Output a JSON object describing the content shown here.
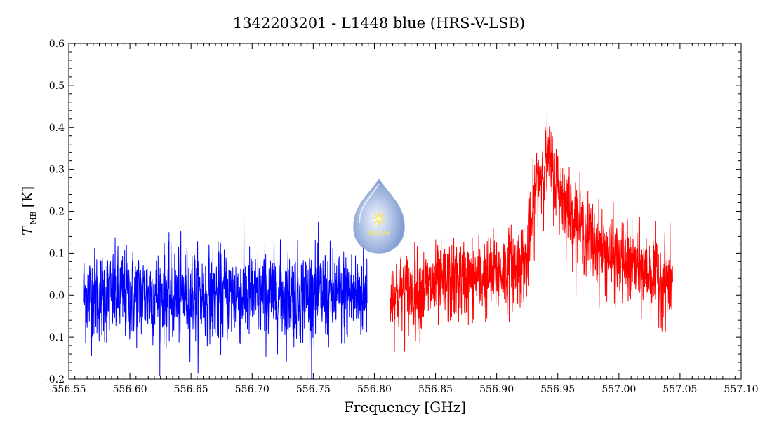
{
  "chart_data": {
    "type": "line",
    "title": "1342203201 - L1448 blue (HRS-V-LSB)",
    "xlabel": "Frequency [GHz]",
    "ylabel_main": "T",
    "ylabel_sub": "MB",
    "ylabel_unit": "[K]",
    "xlim": [
      556.55,
      557.1
    ],
    "ylim": [
      -0.2,
      0.6
    ],
    "x_ticks": [
      "556.55",
      "556.60",
      "556.65",
      "556.70",
      "556.75",
      "556.80",
      "556.85",
      "556.90",
      "556.95",
      "557.00",
      "557.05",
      "557.10"
    ],
    "y_ticks": [
      "-0.2",
      "-0.1",
      "0.0",
      "0.1",
      "0.2",
      "0.3",
      "0.4",
      "0.5",
      "0.6"
    ],
    "grid": false,
    "series": [
      {
        "color": "#0000ff",
        "x_range": [
          556.562,
          556.794
        ],
        "profile": [
          [
            556.562,
            0.0
          ],
          [
            556.794,
            0.0
          ]
        ],
        "noise_rms": 0.055,
        "samples": 1300
      },
      {
        "color": "#ff0000",
        "x_range": [
          556.813,
          557.044
        ],
        "profile": [
          [
            556.813,
            0.0
          ],
          [
            556.85,
            0.02
          ],
          [
            556.9,
            0.05
          ],
          [
            556.925,
            0.08
          ],
          [
            556.932,
            0.26
          ],
          [
            556.942,
            0.33
          ],
          [
            556.95,
            0.26
          ],
          [
            556.96,
            0.2
          ],
          [
            556.98,
            0.12
          ],
          [
            557.0,
            0.08
          ],
          [
            557.044,
            0.03
          ]
        ],
        "noise_rms": 0.048,
        "samples": 1300
      }
    ],
    "logo": {
      "text": "WISH"
    }
  }
}
